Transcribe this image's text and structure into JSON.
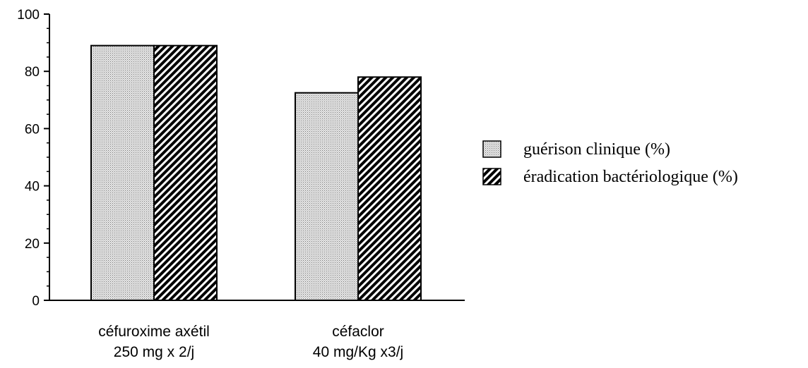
{
  "chart_data": {
    "type": "bar",
    "title": "",
    "xlabel": "",
    "ylabel": "",
    "ylim": [
      0,
      100
    ],
    "yticks": [
      0,
      20,
      40,
      60,
      80,
      100
    ],
    "grid": false,
    "legend_position": "right",
    "categories": [
      [
        "céfuroxime axétil",
        "250 mg x 2/j"
      ],
      [
        "céfaclor",
        "40 mg/Kg x3/j"
      ]
    ],
    "series": [
      {
        "name": "guérison clinique (%)",
        "pattern": "dotted",
        "values": [
          89,
          72.5
        ]
      },
      {
        "name": "éradication bactériologique (%)",
        "pattern": "diagonal-hatch",
        "values": [
          89,
          78
        ]
      }
    ]
  }
}
